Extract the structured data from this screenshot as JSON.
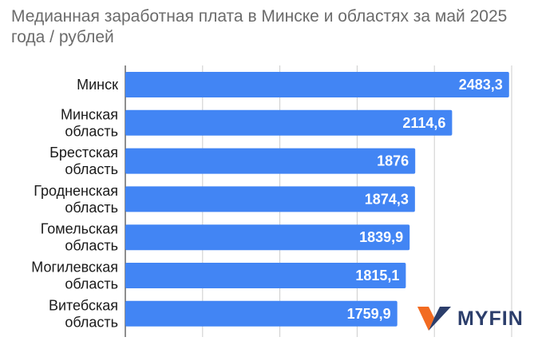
{
  "chart_data": {
    "type": "bar",
    "orientation": "horizontal",
    "title": "Медианная заработная плата в Минске и областях за май 2025 года / рублей",
    "categories": [
      [
        "Минск"
      ],
      [
        "Минская",
        "область"
      ],
      [
        "Брестская",
        "область"
      ],
      [
        "Гродненская",
        "область"
      ],
      [
        "Гомельская",
        "область"
      ],
      [
        "Могилевская",
        "область"
      ],
      [
        "Витебская",
        "область"
      ]
    ],
    "values": [
      2483.3,
      2114.6,
      1876,
      1874.3,
      1839.9,
      1815.1,
      1759.9
    ],
    "data_labels": [
      "2483,3",
      "2114,6",
      "1876",
      "1874,3",
      "1839,9",
      "1815,1",
      "1759,9"
    ],
    "xlim": [
      0,
      2500
    ],
    "grid": "vertical",
    "bar_color": "#4285f4",
    "legend": "none"
  },
  "logo": {
    "text": "MYFIN",
    "icon": "myfin-v-logo-icon",
    "colors": [
      "#f26b21",
      "#2c3e6b"
    ]
  }
}
